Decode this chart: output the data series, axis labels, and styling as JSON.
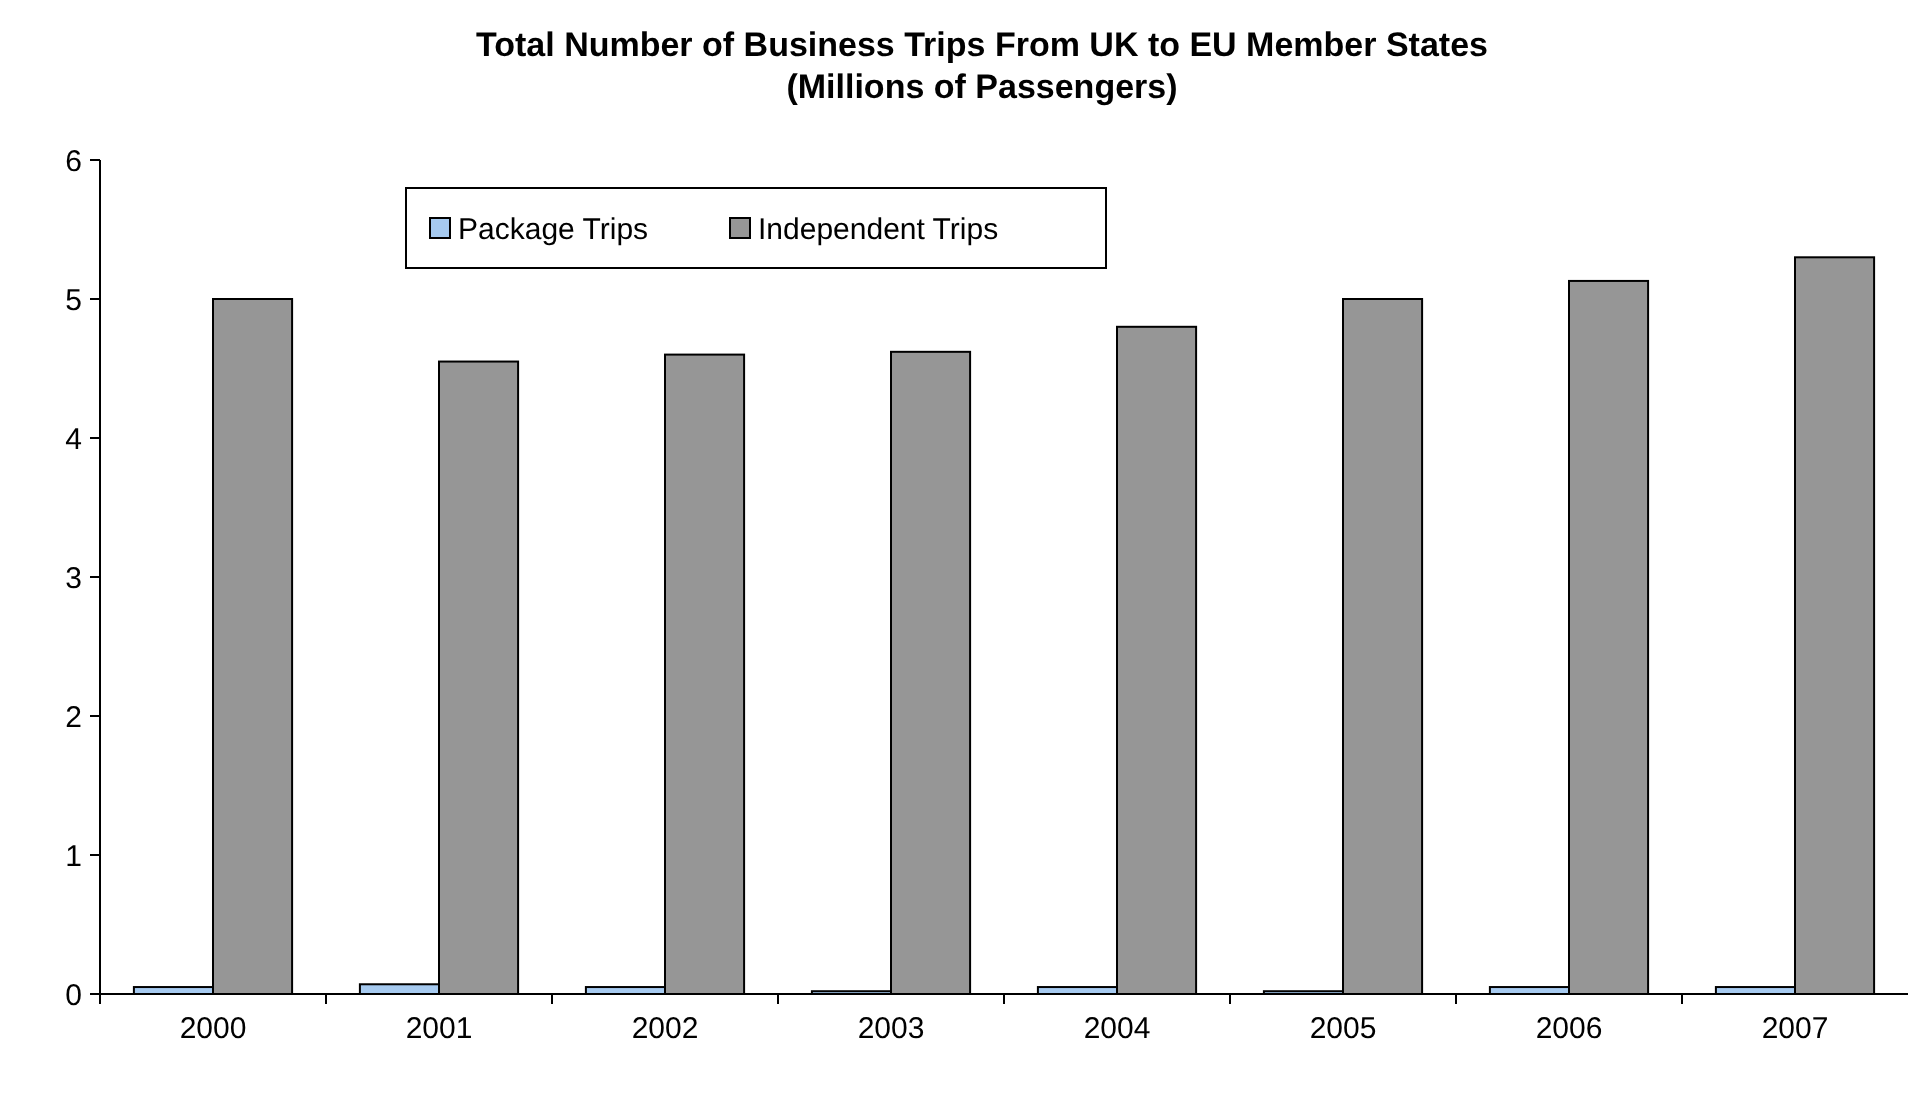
{
  "chart_data": {
    "type": "bar",
    "title": "Total Number of Business Trips From UK to EU Member States\n(Millions of Passengers)",
    "categories": [
      "2000",
      "2001",
      "2002",
      "2003",
      "2004",
      "2005",
      "2006",
      "2007"
    ],
    "series": [
      {
        "name": "Package Trips",
        "color": "#a6caf0",
        "values": [
          0.05,
          0.07,
          0.05,
          0.02,
          0.05,
          0.02,
          0.05,
          0.05
        ]
      },
      {
        "name": "Independent Trips",
        "color": "#969696",
        "values": [
          5.0,
          4.55,
          4.6,
          4.62,
          4.8,
          5.0,
          5.13,
          5.3
        ]
      }
    ],
    "ylim": [
      0,
      6
    ],
    "yticks": [
      0,
      1,
      2,
      3,
      4,
      5,
      6
    ],
    "grid": false,
    "legend": "top"
  }
}
